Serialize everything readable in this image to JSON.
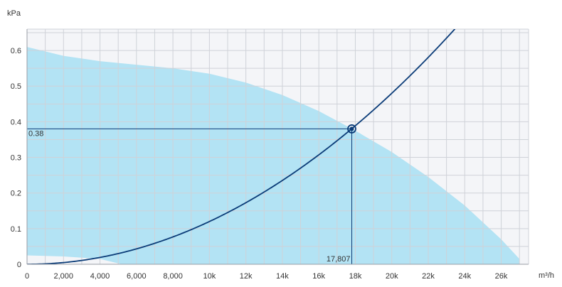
{
  "chart_data": {
    "type": "line",
    "x_unit": "m³/h",
    "y_unit": "kPa",
    "xlim": [
      0,
      27500
    ],
    "ylim": [
      0,
      0.66
    ],
    "grid": true,
    "x_ticks": [
      0,
      2000,
      4000,
      6000,
      8000,
      10000,
      12000,
      14000,
      16000,
      18000,
      20000,
      22000,
      24000,
      26000
    ],
    "x_tick_labels": [
      "0",
      "2,000",
      "4,000",
      "6,000",
      "8,000",
      "10k",
      "12k",
      "14k",
      "16k",
      "18k",
      "20k",
      "22k",
      "24k",
      "26k"
    ],
    "y_ticks": [
      0,
      0.1,
      0.2,
      0.3,
      0.4,
      0.5,
      0.6
    ],
    "y_tick_labels": [
      "0",
      "0.1",
      "0.2",
      "0.3",
      "0.4",
      "0.5",
      "0.6"
    ],
    "operating_region": {
      "upper": [
        [
          0,
          0.61
        ],
        [
          2000,
          0.585
        ],
        [
          4000,
          0.57
        ],
        [
          6000,
          0.56
        ],
        [
          8000,
          0.55
        ],
        [
          10000,
          0.535
        ],
        [
          12000,
          0.51
        ],
        [
          14000,
          0.475
        ],
        [
          16000,
          0.43
        ],
        [
          18000,
          0.375
        ],
        [
          20000,
          0.315
        ],
        [
          22000,
          0.245
        ],
        [
          24000,
          0.165
        ],
        [
          26000,
          0.07
        ],
        [
          27000,
          0.015
        ]
      ],
      "lower": [
        [
          0,
          0.025
        ],
        [
          2000,
          0.022
        ],
        [
          4000,
          0.015
        ],
        [
          5200,
          0.0
        ]
      ]
    },
    "system_curve": {
      "k": 1.2e-09,
      "x_max": 23500
    },
    "operating_point": {
      "x": 17807,
      "y": 0.38,
      "x_label": "17,807",
      "y_label": "0.38"
    },
    "colors": {
      "region": "#b3e3f4",
      "curve": "#0b3c78",
      "background": "#f4f5f8",
      "grid": "#cfd2d8"
    }
  }
}
